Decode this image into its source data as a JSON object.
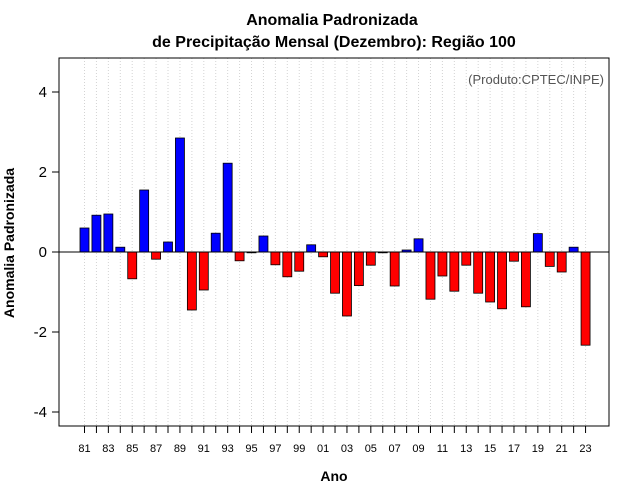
{
  "chart_data": {
    "type": "bar",
    "title_line1": "Anomalia Padronizada",
    "title_line2": "de Precipitação Mensal (Dezembro): Região 100",
    "credit": "(Produto:CPTEC/INPE)",
    "xlabel": "Ano",
    "ylabel": "Anomalia Padronizada",
    "ylim": [
      -4.35,
      4.85
    ],
    "yticks": [
      4,
      2,
      0,
      -2,
      -4
    ],
    "ytick_labels": [
      "4",
      "2",
      "0",
      "-2",
      "-4"
    ],
    "grid": "vertical dotted",
    "positive_color": "#0000ff",
    "negative_color": "#ff0000",
    "categories": [
      "81",
      "82",
      "83",
      "84",
      "85",
      "86",
      "87",
      "88",
      "89",
      "90",
      "91",
      "92",
      "93",
      "94",
      "95",
      "96",
      "97",
      "98",
      "99",
      "00",
      "01",
      "02",
      "03",
      "04",
      "05",
      "06",
      "07",
      "08",
      "09",
      "10",
      "11",
      "12",
      "13",
      "14",
      "15",
      "16",
      "17",
      "18",
      "19",
      "20",
      "21",
      "22",
      "23"
    ],
    "xtick_labels": [
      "81",
      "83",
      "85",
      "87",
      "89",
      "91",
      "93",
      "95",
      "97",
      "99",
      "01",
      "03",
      "05",
      "07",
      "09",
      "11",
      "13",
      "15",
      "17",
      "19",
      "21",
      "23"
    ],
    "values": [
      0.6,
      0.92,
      0.95,
      0.12,
      -0.67,
      1.55,
      -0.18,
      0.25,
      2.85,
      -1.45,
      -0.95,
      0.47,
      2.22,
      -0.22,
      -0.02,
      0.4,
      -0.32,
      -0.62,
      -0.48,
      0.18,
      -0.12,
      -1.03,
      -1.6,
      -0.84,
      -0.33,
      -0.02,
      -0.85,
      0.05,
      0.33,
      -1.18,
      -0.6,
      -0.98,
      -0.33,
      -1.03,
      -1.25,
      -1.42,
      -0.23,
      -1.37,
      0.46,
      -0.36,
      -0.5,
      0.12,
      -2.33
    ]
  }
}
